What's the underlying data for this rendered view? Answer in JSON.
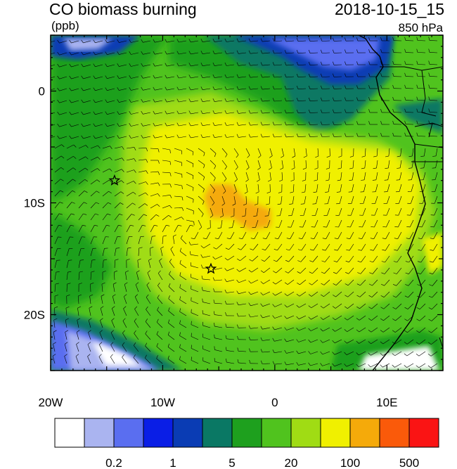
{
  "title": "CO biomass burning",
  "datetime": "2018-10-15_15",
  "units": "(ppb)",
  "level": "850 hPa",
  "map_extent": {
    "lon": [
      -20,
      15
    ],
    "lat": [
      -25,
      5
    ]
  },
  "x_ticks": [
    {
      "lon": -20,
      "label": "20W"
    },
    {
      "lon": -10,
      "label": "10W"
    },
    {
      "lon": 0,
      "label": "0"
    },
    {
      "lon": 10,
      "label": "10E"
    }
  ],
  "y_ticks": [
    {
      "lat": 0,
      "label": "0"
    },
    {
      "lat": -10,
      "label": "10S"
    },
    {
      "lat": -20,
      "label": "20S"
    }
  ],
  "markers": [
    {
      "name": "star-marker",
      "lon": -14.3,
      "lat": -8.0
    },
    {
      "name": "star-marker",
      "lon": -5.7,
      "lat": -15.9
    }
  ],
  "colorbar": {
    "colors": [
      "#ffffff",
      "#aab4f0",
      "#5a6ef0",
      "#0a1ee6",
      "#0a3cb4",
      "#0a7864",
      "#1ea01e",
      "#50c31e",
      "#a0dc14",
      "#f0f000",
      "#f5aa0a",
      "#fa5a0a",
      "#fa1414"
    ],
    "labels": [
      {
        "index": 2,
        "text": "0.2"
      },
      {
        "index": 4,
        "text": "1"
      },
      {
        "index": 6,
        "text": "5"
      },
      {
        "index": 8,
        "text": "20"
      },
      {
        "index": 10,
        "text": "100"
      },
      {
        "index": 12,
        "text": "500"
      }
    ]
  }
}
